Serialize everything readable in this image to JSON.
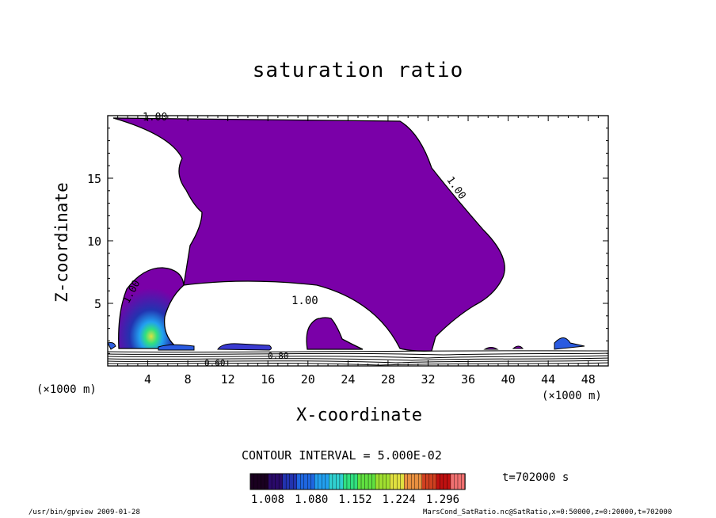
{
  "chart_data": {
    "type": "contour",
    "title": "saturation ratio",
    "xlabel": "X-coordinate",
    "ylabel": "Z-coordinate",
    "x_unit": "(×1000 m)",
    "x_ticks": [
      4,
      8,
      12,
      16,
      20,
      24,
      28,
      32,
      36,
      40,
      44,
      48
    ],
    "y_ticks": [
      5,
      10,
      15
    ],
    "xlim": [
      0,
      50
    ],
    "ylim": [
      0,
      20
    ],
    "contour_labels": [
      "1.00",
      "1.00",
      "1.00",
      "1.00",
      "0.80",
      "0.60"
    ],
    "contour_interval_text": "CONTOUR INTERVAL = 5.000E-02",
    "colorbar_ticks": [
      "1.008",
      "1.080",
      "1.152",
      "1.224",
      "1.296"
    ],
    "colorbar_colors": [
      "#1a0020",
      "#2a0a6a",
      "#2233b0",
      "#1e66e0",
      "#22a0f0",
      "#30d0d0",
      "#30e080",
      "#60e040",
      "#a0e030",
      "#e0e040",
      "#e89040",
      "#d04020",
      "#c01010",
      "#f07070"
    ],
    "fill_color": "#7a00a8",
    "time_text": "t=702000 s"
  },
  "footer": {
    "left": "/usr/bin/gpview  2009-01-28",
    "right": "MarsCond_SatRatio.nc@SatRatio,x=0:50000,z=0:20000,t=702000"
  }
}
